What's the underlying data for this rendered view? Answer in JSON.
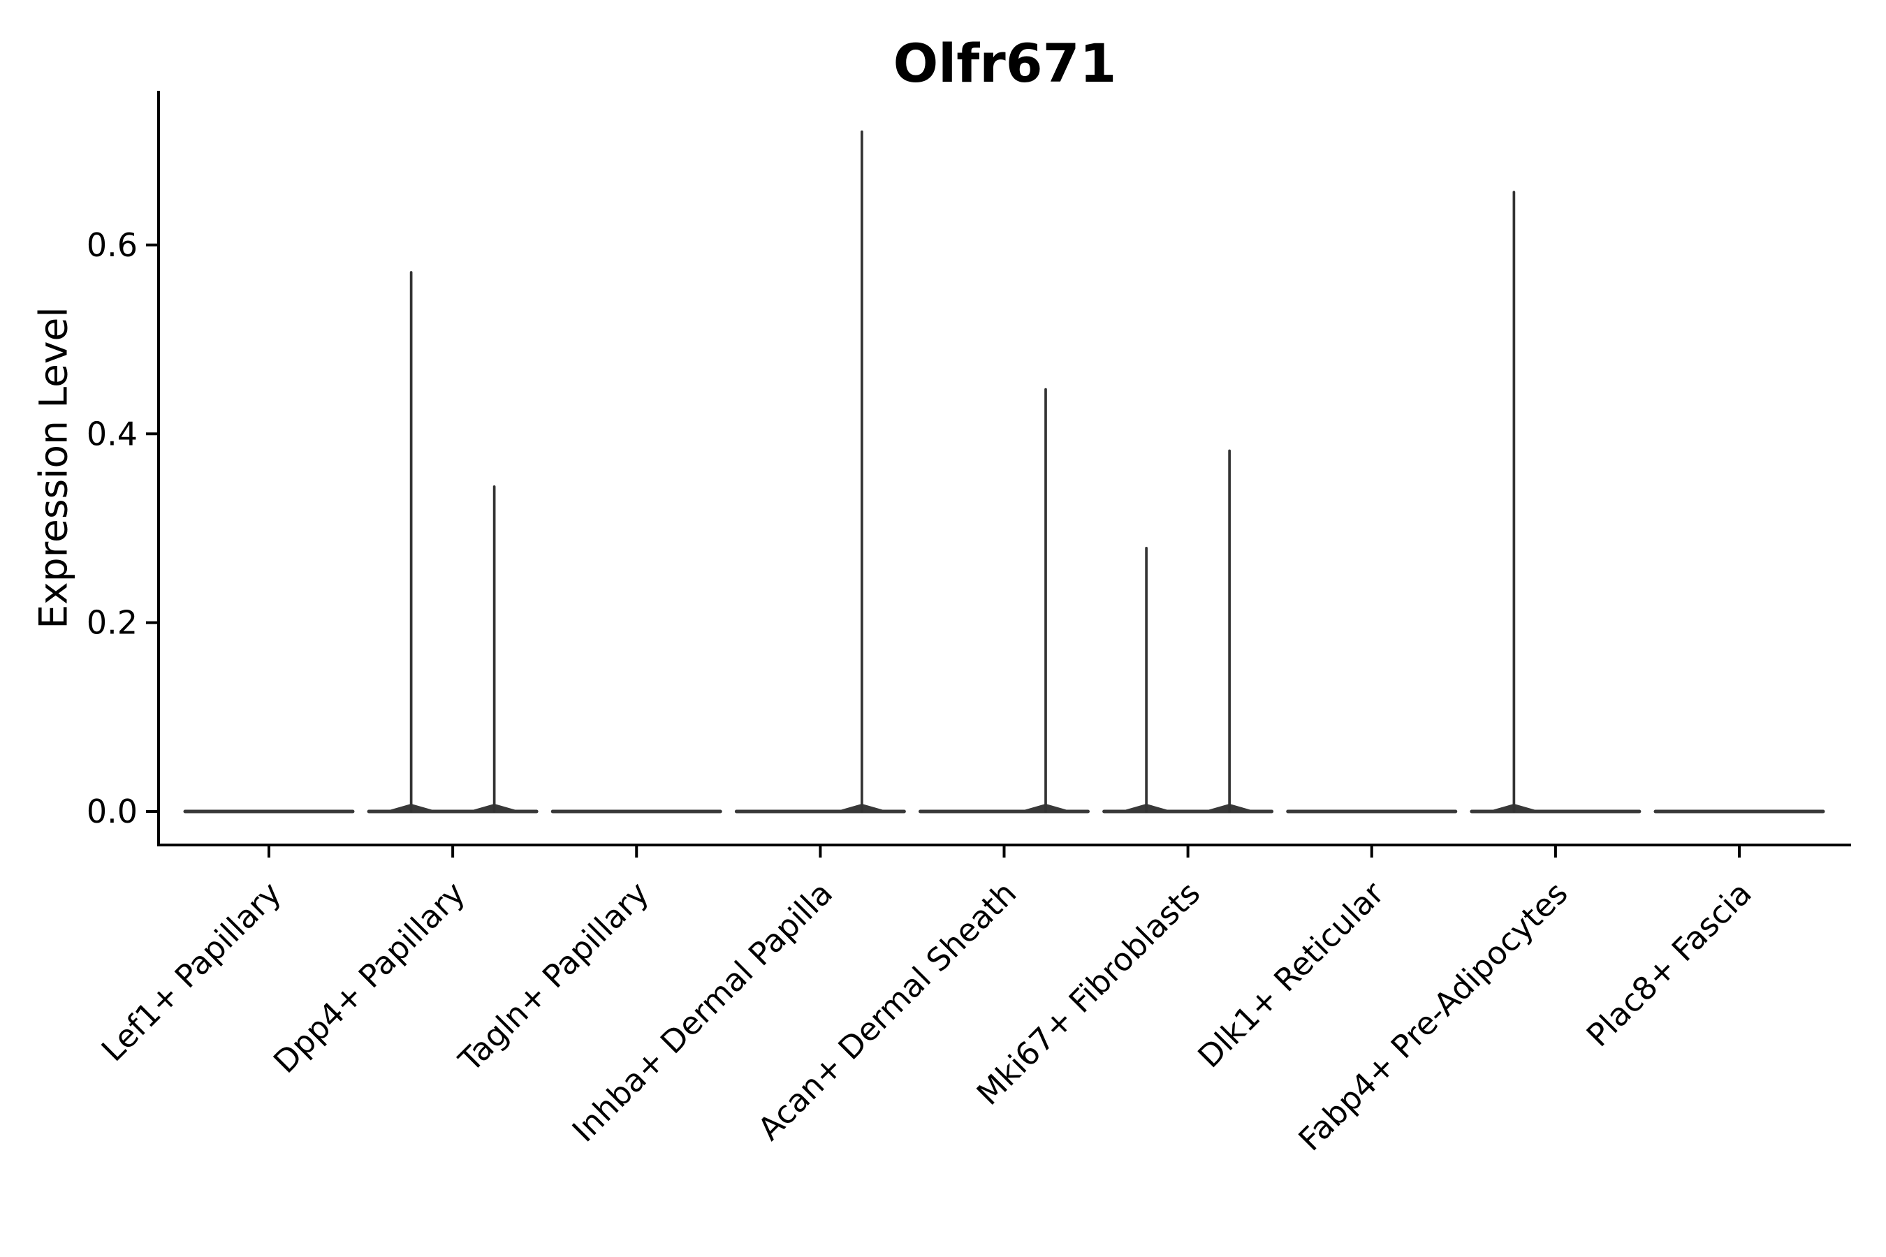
{
  "chart_data": {
    "type": "violin",
    "title": "Olfr671",
    "xlabel": "",
    "ylabel": "Expression Level",
    "ylim": [
      -0.036,
      0.763
    ],
    "yticks": [
      {
        "label": "0.0",
        "value": 0.0
      },
      {
        "label": "0.2",
        "value": 0.2
      },
      {
        "label": "0.4",
        "value": 0.4
      },
      {
        "label": "0.6",
        "value": 0.6
      }
    ],
    "x_label_rotation_deg": 45,
    "grid": "off",
    "legend": "none",
    "axis_color": "#000000",
    "violin_color": "#383838",
    "spike_color": "#333333",
    "baseline_value": 0.0,
    "violin_width_units": 0.9,
    "dodge_offset_units": 0.226,
    "categories": [
      {
        "label": "Lef1+ Papillary",
        "spikes": []
      },
      {
        "label": "Dpp4+ Papillary",
        "spikes": [
          {
            "side": "left",
            "value": 0.571
          },
          {
            "side": "right",
            "value": 0.344
          }
        ]
      },
      {
        "label": "Tagln+ Papillary",
        "spikes": []
      },
      {
        "label": "Inhba+ Dermal Papilla",
        "spikes": [
          {
            "side": "right",
            "value": 0.72
          }
        ]
      },
      {
        "label": "Acan+ Dermal Sheath",
        "spikes": [
          {
            "side": "right",
            "value": 0.447
          }
        ]
      },
      {
        "label": "Mki67+ Fibroblasts",
        "spikes": [
          {
            "side": "left",
            "value": 0.279
          },
          {
            "side": "right",
            "value": 0.382
          }
        ]
      },
      {
        "label": "Dlk1+ Reticular",
        "spikes": []
      },
      {
        "label": "Fabp4+ Pre-Adipocytes",
        "spikes": [
          {
            "side": "left",
            "value": 0.656
          }
        ]
      },
      {
        "label": "Plac8+ Fascia",
        "spikes": []
      }
    ]
  }
}
